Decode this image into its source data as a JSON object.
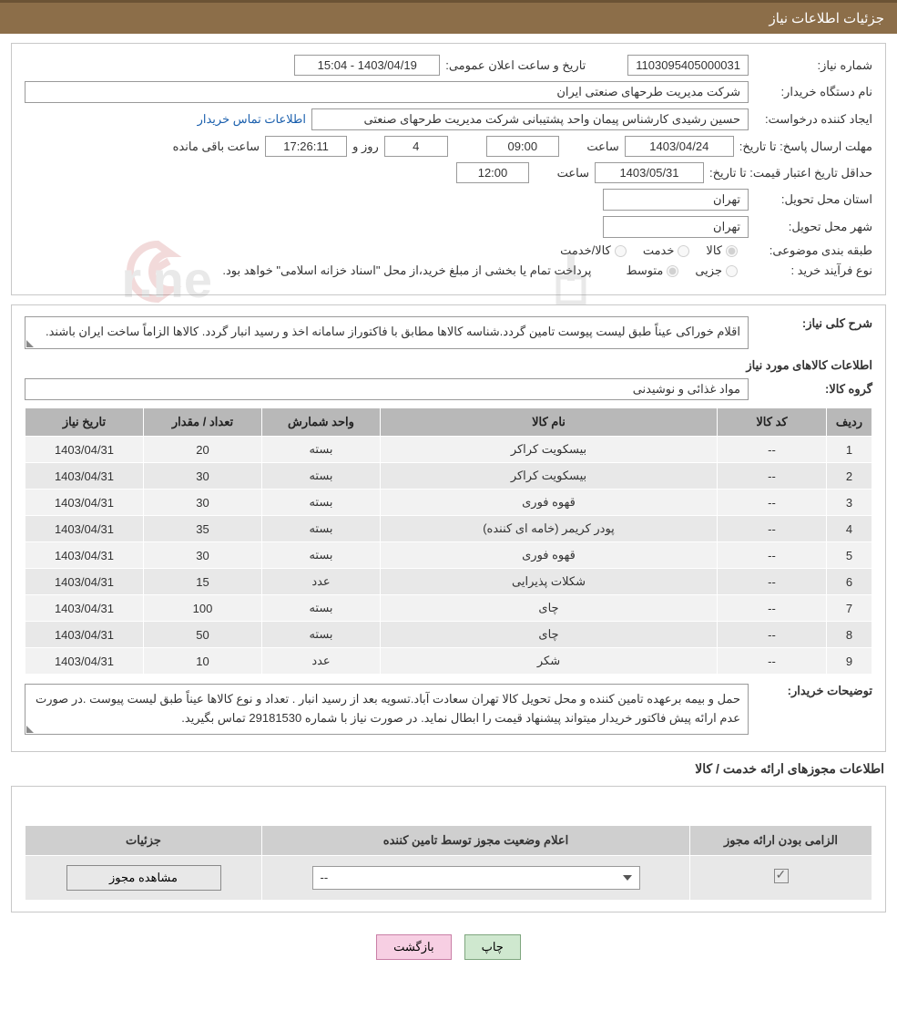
{
  "header": {
    "title": "جزئیات اطلاعات نیاز"
  },
  "info": {
    "need_no_label": "شماره نیاز:",
    "need_no": "1103095405000031",
    "pub_date_label": "تاریخ و ساعت اعلان عمومی:",
    "pub_date": "1403/04/19 - 15:04",
    "buyer_label": "نام دستگاه خریدار:",
    "buyer": "شرکت مدیریت طرحهای صنعتی ایران",
    "requester_label": "ایجاد کننده درخواست:",
    "requester": "حسین رشیدی کارشناس پیمان واحد پشتیبانی شرکت مدیریت طرحهای صنعتی",
    "contact_link": "اطلاعات تماس خریدار",
    "resp_deadline_label": "مهلت ارسال پاسخ: تا تاریخ:",
    "resp_date": "1403/04/24",
    "time_label": "ساعت",
    "resp_time": "09:00",
    "days_suffix": "روز و",
    "days_remain": "4",
    "hms_remain": "17:26:11",
    "remain_suffix": "ساعت باقی مانده",
    "price_valid_label": "حداقل تاریخ اعتبار قیمت: تا تاریخ:",
    "price_date": "1403/05/31",
    "price_time": "12:00",
    "province_label": "استان محل تحویل:",
    "province": "تهران",
    "city_label": "شهر محل تحویل:",
    "city": "تهران",
    "category_label": "طبقه بندی موضوعی:",
    "cat1": "کالا",
    "cat2": "خدمت",
    "cat3": "کالا/خدمت",
    "purchase_type_label": "نوع فرآیند خرید :",
    "pt1": "جزیی",
    "pt2": "متوسط",
    "pt_note": "پرداخت تمام یا بخشی از مبلغ خرید،از محل \"اسناد خزانه اسلامی\" خواهد بود."
  },
  "need": {
    "overall_label": "شرح کلی نیاز:",
    "overall_text": "اقلام خوراکی عیناً طبق لیست پیوست تامین گردد.شناسه کالاها مطابق با فاکتوراز سامانه اخذ و رسید انبار گردد. کالاها  الزاماً ساخت ایران باشند.",
    "items_title": "اطلاعات کالاهای مورد نیاز",
    "group_label": "گروه کالا:",
    "group": "مواد غذائی و نوشیدنی",
    "cols": {
      "row": "ردیف",
      "code": "کد کالا",
      "name": "نام کالا",
      "unit": "واحد شمارش",
      "qty": "تعداد / مقدار",
      "date": "تاریخ نیاز"
    },
    "rows": [
      {
        "r": "1",
        "code": "--",
        "name": "بیسکویت کراکر",
        "unit": "بسته",
        "qty": "20",
        "date": "1403/04/31"
      },
      {
        "r": "2",
        "code": "--",
        "name": "بیسکویت کراکر",
        "unit": "بسته",
        "qty": "30",
        "date": "1403/04/31"
      },
      {
        "r": "3",
        "code": "--",
        "name": "قهوه فوری",
        "unit": "بسته",
        "qty": "30",
        "date": "1403/04/31"
      },
      {
        "r": "4",
        "code": "--",
        "name": "پودر کریمر (خامه ای کننده)",
        "unit": "بسته",
        "qty": "35",
        "date": "1403/04/31"
      },
      {
        "r": "5",
        "code": "--",
        "name": "قهوه فوری",
        "unit": "بسته",
        "qty": "30",
        "date": "1403/04/31"
      },
      {
        "r": "6",
        "code": "--",
        "name": "شکلات پذیرایی",
        "unit": "عدد",
        "qty": "15",
        "date": "1403/04/31"
      },
      {
        "r": "7",
        "code": "--",
        "name": "چای",
        "unit": "بسته",
        "qty": "100",
        "date": "1403/04/31"
      },
      {
        "r": "8",
        "code": "--",
        "name": "چای",
        "unit": "بسته",
        "qty": "50",
        "date": "1403/04/31"
      },
      {
        "r": "9",
        "code": "--",
        "name": "شکر",
        "unit": "عدد",
        "qty": "10",
        "date": "1403/04/31"
      }
    ],
    "buyer_note_label": "توضیحات خریدار:",
    "buyer_note": "حمل و بیمه برعهده تامین کننده و محل تحویل کالا تهران سعادت آباد.تسویه بعد از رسید انبار . تعداد و نوع  کالاها عیناً طبق لیست پیوست .در صورت عدم ارائه پیش فاکتور خریدار میتواند پیشنهاد قیمت را ابطال نماید. در صورت نیاز با شماره 29181530 تماس بگیرید."
  },
  "permits": {
    "title": "اطلاعات مجوزهای ارائه خدمت / کالا",
    "cols": {
      "mandatory": "الزامی بودن ارائه مجوز",
      "status": "اعلام وضعیت مجوز توسط تامین کننده",
      "details": "جزئیات"
    },
    "select_placeholder": "--",
    "view_btn": "مشاهده مجوز"
  },
  "footer": {
    "print": "چاپ",
    "back": "بازگشت"
  },
  "colors": {
    "header_bg": "#8c6e49",
    "th_bg": "#b8b8b8",
    "row_bg": "#f2f2f2",
    "row_alt": "#e8e8e8"
  }
}
